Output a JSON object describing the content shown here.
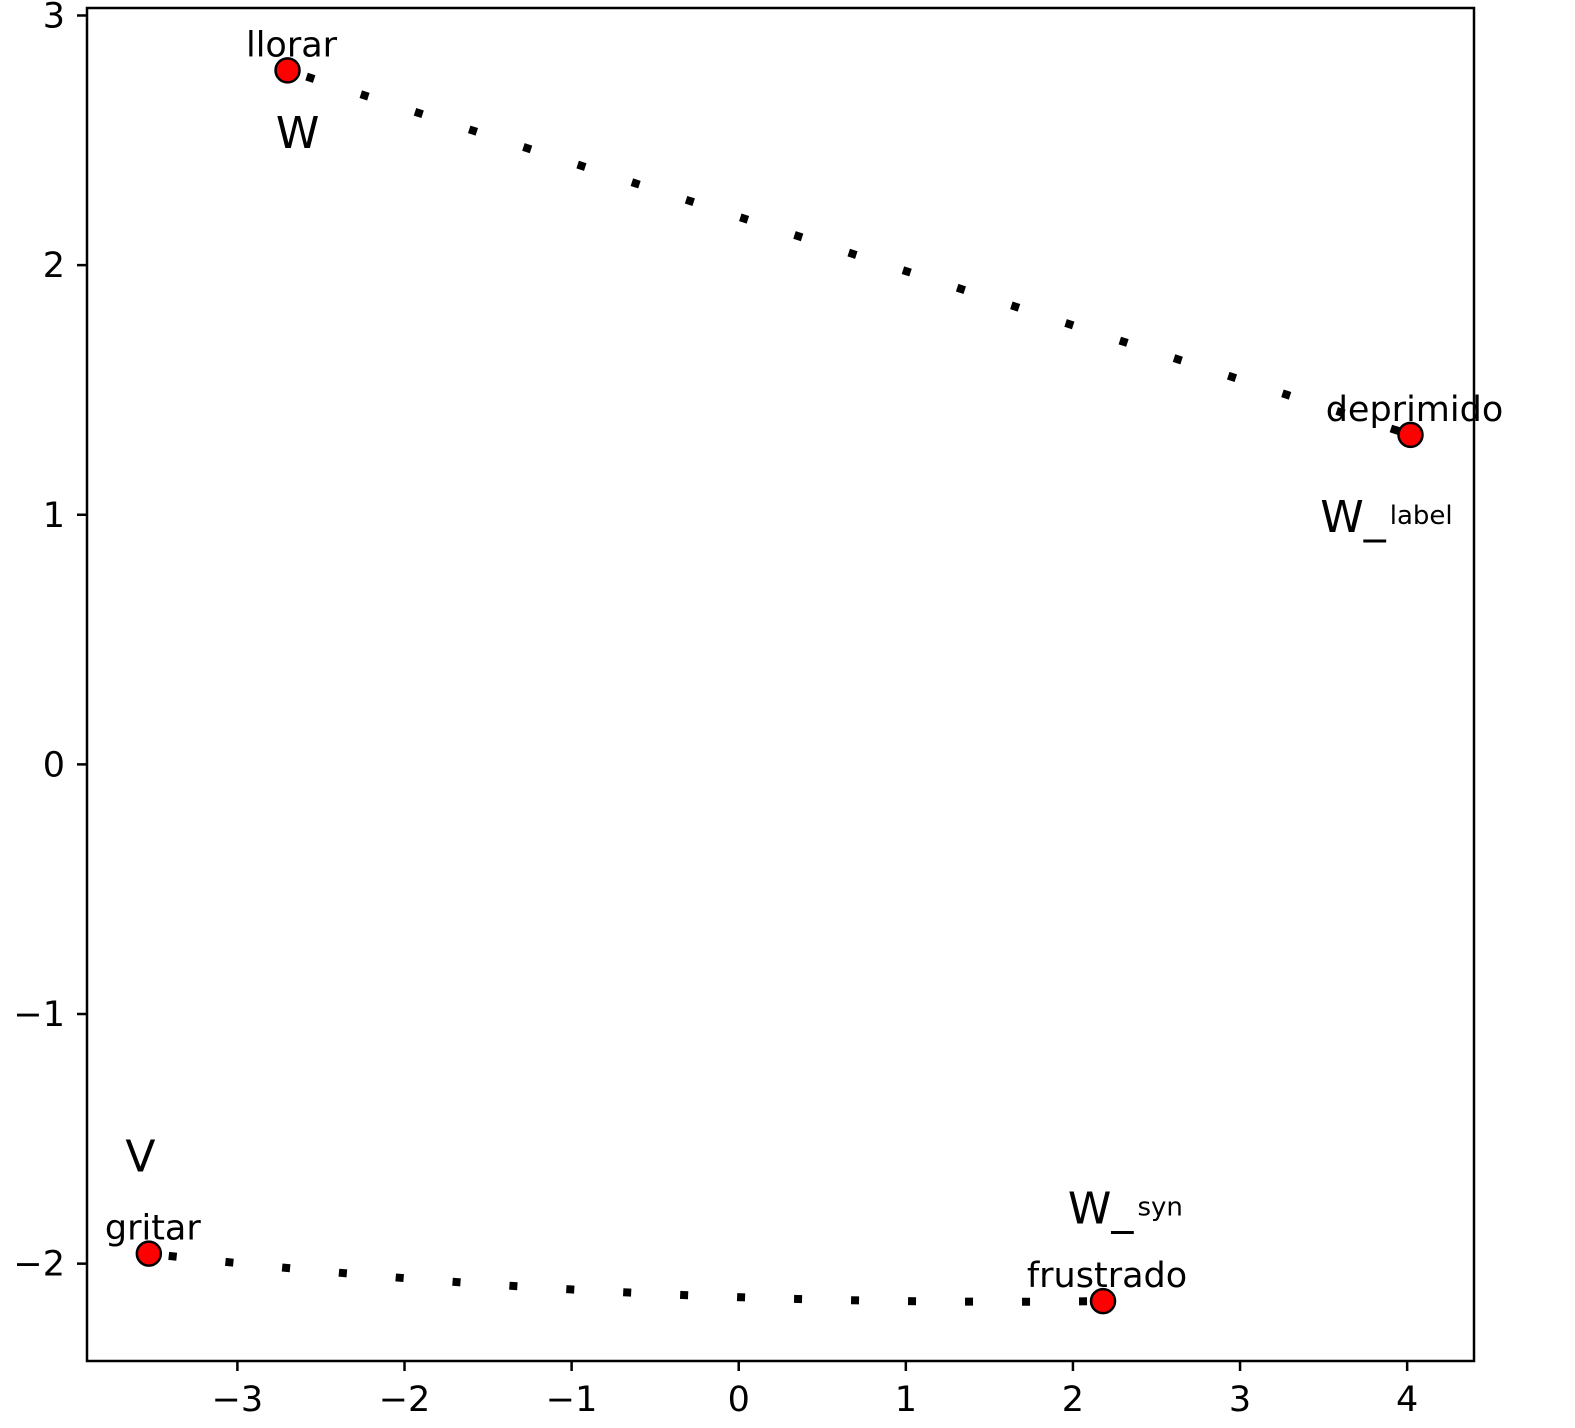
{
  "chart_data": {
    "type": "scatter",
    "title": "",
    "xlabel": "",
    "ylabel": "",
    "xlim": [
      -3.9,
      4.4
    ],
    "ylim": [
      -2.39,
      3.03
    ],
    "xticks": [
      -3,
      -2,
      -1,
      0,
      1,
      2,
      3,
      4
    ],
    "yticks": [
      -2,
      -1,
      0,
      1,
      2,
      3
    ],
    "xtick_labels": [
      "−3",
      "−2",
      "−1",
      "0",
      "1",
      "2",
      "3",
      "4"
    ],
    "ytick_labels": [
      "−2",
      "−1",
      "0",
      "1",
      "2",
      "3"
    ],
    "grid": false,
    "marker_color": "#ff0000",
    "marker_edge_color": "#000000",
    "points": [
      {
        "label": "llorar",
        "x": -2.7,
        "y": 2.78
      },
      {
        "label": "deprimido",
        "x": 4.02,
        "y": 1.32
      },
      {
        "label": "gritar",
        "x": -3.53,
        "y": -1.96
      },
      {
        "label": "frustrado",
        "x": 2.18,
        "y": -2.15
      }
    ],
    "connections": [
      {
        "from": "llorar",
        "to": "deprimido",
        "style": "dotted"
      },
      {
        "from": "gritar",
        "to": "frustrado",
        "style": "dotted",
        "curve": true
      }
    ],
    "annotations": [
      {
        "id": "w",
        "main": "W",
        "sub": "",
        "x": -2.77,
        "y": 2.47
      },
      {
        "id": "w-label",
        "main": "W_",
        "sub": "label",
        "x": 3.48,
        "y": 0.93
      },
      {
        "id": "v",
        "main": "V",
        "sub": "",
        "x": -3.67,
        "y": -1.63
      },
      {
        "id": "w-syn",
        "main": "W_",
        "sub": "syn",
        "x": 1.97,
        "y": -1.84
      }
    ]
  }
}
